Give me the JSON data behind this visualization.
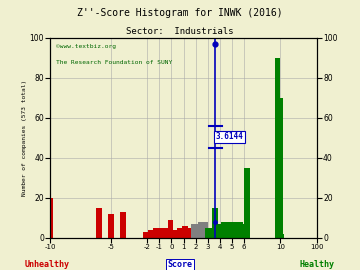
{
  "title": "Z''-Score Histogram for INWK (2016)",
  "subtitle": "Sector:  Industrials",
  "xlabel_left": "Unhealthy",
  "xlabel_center": "Score",
  "xlabel_right": "Healthy",
  "ylabel_left": "Number of companies (573 total)",
  "watermark1": "©www.textbiz.org",
  "watermark2": "The Research Foundation of SUNY",
  "score_value": 3.6144,
  "score_label": "3.6144",
  "ylim": [
    0,
    100
  ],
  "yticks": [
    0,
    20,
    40,
    60,
    80,
    100
  ],
  "background_color": "#f0f0d0",
  "tick_scores": [
    -10,
    -5,
    -2,
    -1,
    0,
    1,
    2,
    3,
    4,
    5,
    6,
    10,
    100
  ],
  "tick_pos": [
    0,
    5,
    8,
    9,
    10,
    11,
    12,
    13,
    14,
    15,
    16,
    19,
    22
  ],
  "bars": [
    [
      -12,
      20,
      "#cc0000"
    ],
    [
      -11,
      10,
      "#cc0000"
    ],
    [
      -10,
      5,
      "#cc0000"
    ],
    [
      -6,
      15,
      "#cc0000"
    ],
    [
      -5,
      12,
      "#cc0000"
    ],
    [
      -4,
      13,
      "#cc0000"
    ],
    [
      -2.1,
      3,
      "#cc0000"
    ],
    [
      -1.7,
      4,
      "#cc0000"
    ],
    [
      -1.3,
      5,
      "#cc0000"
    ],
    [
      -0.9,
      5,
      "#cc0000"
    ],
    [
      -0.5,
      5,
      "#cc0000"
    ],
    [
      -0.1,
      9,
      "#cc0000"
    ],
    [
      0.3,
      4,
      "#cc0000"
    ],
    [
      0.7,
      5,
      "#cc0000"
    ],
    [
      1.1,
      6,
      "#cc0000"
    ],
    [
      1.5,
      5,
      "#cc0000"
    ],
    [
      1.85,
      7,
      "#808080"
    ],
    [
      2.15,
      7,
      "#808080"
    ],
    [
      2.45,
      8,
      "#808080"
    ],
    [
      2.75,
      8,
      "#808080"
    ],
    [
      3.0,
      5,
      "#008000"
    ],
    [
      3.15,
      5,
      "#008000"
    ],
    [
      3.3,
      5,
      "#008000"
    ],
    [
      3.45,
      5,
      "#008000"
    ],
    [
      3.6,
      15,
      "#008000"
    ],
    [
      3.75,
      5,
      "#008000"
    ],
    [
      3.9,
      5,
      "#008000"
    ],
    [
      4.05,
      7,
      "#008000"
    ],
    [
      4.2,
      7,
      "#008000"
    ],
    [
      4.35,
      8,
      "#008000"
    ],
    [
      4.5,
      7,
      "#008000"
    ],
    [
      4.65,
      8,
      "#008000"
    ],
    [
      4.8,
      8,
      "#008000"
    ],
    [
      4.95,
      7,
      "#008000"
    ],
    [
      5.1,
      7,
      "#008000"
    ],
    [
      5.25,
      8,
      "#008000"
    ],
    [
      5.4,
      7,
      "#008000"
    ],
    [
      5.55,
      7,
      "#008000"
    ],
    [
      5.7,
      8,
      "#008000"
    ],
    [
      5.85,
      7,
      "#008000"
    ],
    [
      6.3,
      35,
      "#008000"
    ],
    [
      9.7,
      90,
      "#008000"
    ],
    [
      10.3,
      70,
      "#008000"
    ],
    [
      10.9,
      2,
      "#008000"
    ]
  ]
}
